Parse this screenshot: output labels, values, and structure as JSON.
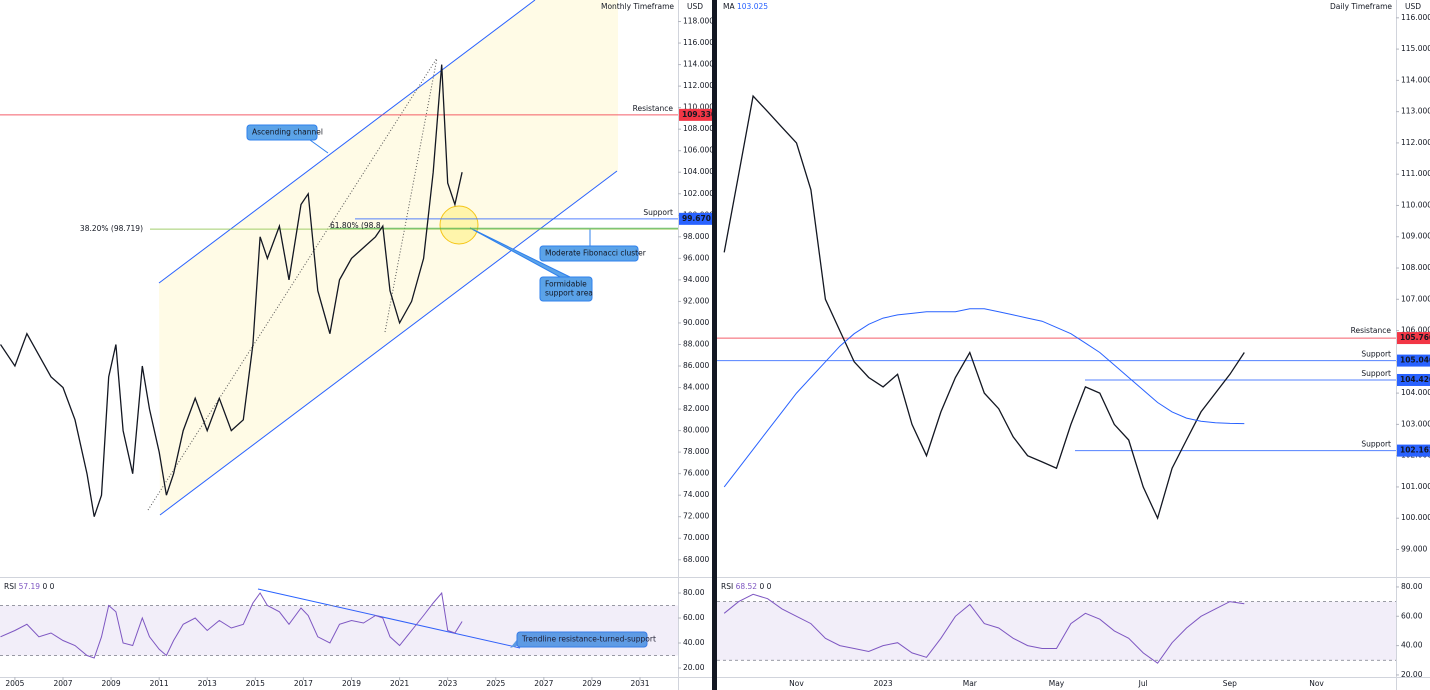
{
  "chart_data": [
    {
      "type": "line",
      "title": "Monthly Timeframe",
      "currency": "USD",
      "x": [
        2004.4,
        2005,
        2005.5,
        2006,
        2006.5,
        2007,
        2007.5,
        2008,
        2008.3,
        2008.6,
        2008.9,
        2009.2,
        2009.5,
        2009.9,
        2010.3,
        2010.6,
        2011.0,
        2011.3,
        2011.6,
        2012.0,
        2012.5,
        2013.0,
        2013.5,
        2014.0,
        2014.5,
        2014.9,
        2015.2,
        2015.5,
        2016.0,
        2016.4,
        2016.9,
        2017.2,
        2017.6,
        2018.1,
        2018.5,
        2019.0,
        2019.5,
        2020.0,
        2020.3,
        2020.6,
        2021.0,
        2021.5,
        2022.0,
        2022.4,
        2022.75,
        2023.0,
        2023.3,
        2023.6
      ],
      "xlim": [
        2004.38,
        2032.58
      ],
      "xticks": [
        2005,
        2007,
        2009,
        2011,
        2013,
        2015,
        2017,
        2019,
        2021,
        2023,
        2025,
        2027,
        2029,
        2031
      ],
      "ylim": [
        66.4,
        120
      ],
      "yticks": [
        {
          "value": 68,
          "label": "68.000"
        },
        {
          "value": 70,
          "label": "70.000"
        },
        {
          "value": 72,
          "label": "72.000"
        },
        {
          "value": 74,
          "label": "74.000"
        },
        {
          "value": 76,
          "label": "76.000"
        },
        {
          "value": 78,
          "label": "78.000"
        },
        {
          "value": 80,
          "label": "80.000"
        },
        {
          "value": 82,
          "label": "82.000"
        },
        {
          "value": 84,
          "label": "84.000"
        },
        {
          "value": 86,
          "label": "86.000"
        },
        {
          "value": 88,
          "label": "88.000"
        },
        {
          "value": 90,
          "label": "90.000"
        },
        {
          "value": 92,
          "label": "92.000"
        },
        {
          "value": 94,
          "label": "94.000"
        },
        {
          "value": 96,
          "label": "96.000"
        },
        {
          "value": 98,
          "label": "98.000"
        },
        {
          "value": 100,
          "label": "100.000"
        },
        {
          "value": 102,
          "label": "102.000"
        },
        {
          "value": 104,
          "label": "104.000"
        },
        {
          "value": 106,
          "label": "106.000"
        },
        {
          "value": 108,
          "label": "108.000"
        },
        {
          "value": 110,
          "label": "110.000"
        },
        {
          "value": 112,
          "label": "112.000"
        },
        {
          "value": 114,
          "label": "114.000"
        },
        {
          "value": 116,
          "label": "116.000"
        },
        {
          "value": 118,
          "label": "118.000"
        }
      ],
      "series": [
        {
          "color": "#131722",
          "values": [
            88,
            86,
            89,
            87,
            85,
            84,
            81,
            76,
            72,
            74,
            85,
            88,
            80,
            76,
            86,
            82,
            78,
            74,
            76,
            80,
            83,
            80,
            83,
            80,
            81,
            88,
            98,
            96,
            99,
            94,
            101,
            102,
            93,
            89,
            94,
            96,
            97,
            98,
            99,
            93,
            90,
            92,
            96,
            104,
            114,
            103,
            101,
            104
          ]
        }
      ],
      "levels": [
        {
          "label": "Resistance",
          "value": 109.33,
          "value_label": "109.330",
          "color": "#f23645"
        },
        {
          "label": "Support",
          "value": 99.67,
          "value_label": "99.670",
          "color": "#2962ff"
        },
        {
          "label": "38.20% (98.719)",
          "value": 98.719,
          "color": "#8bc34a"
        },
        {
          "label": "61.80% (98.8",
          "value": 98.8,
          "color": "#4caf50"
        }
      ],
      "annotations": [
        [
          "Ascending channel"
        ],
        [
          "Moderate Fibonacci cluster"
        ],
        [
          "Formidable",
          "support area"
        ],
        [
          "Trendline resistance-turned-support"
        ]
      ],
      "rsi": {
        "name": "RSI",
        "params": "0 0",
        "color": "#7e57c2",
        "ylim": [
          12.8,
          92
        ],
        "yticks": [
          {
            "value": 20,
            "label": "20.00"
          },
          {
            "value": 40,
            "label": "40.00"
          },
          {
            "value": 60,
            "label": "60.00"
          },
          {
            "value": 80,
            "label": "80.00"
          }
        ],
        "bands": [
          70,
          30
        ],
        "values": [
          45,
          50,
          55,
          45,
          48,
          42,
          38,
          30,
          28,
          45,
          70,
          65,
          40,
          38,
          60,
          45,
          35,
          30,
          42,
          55,
          60,
          50,
          58,
          52,
          55,
          72,
          80,
          70,
          65,
          55,
          68,
          62,
          45,
          40,
          55,
          58,
          56,
          62,
          60,
          45,
          38,
          50,
          62,
          72,
          80,
          50,
          48,
          57.19
        ]
      }
    },
    {
      "type": "line",
      "title": "Daily Timeframe",
      "currency": "USD",
      "categories": [
        null,
        null,
        null,
        null,
        null,
        "Nov",
        null,
        null,
        null,
        null,
        null,
        "2023",
        null,
        null,
        null,
        null,
        null,
        "Mar",
        null,
        null,
        null,
        null,
        null,
        "May",
        null,
        null,
        null,
        null,
        null,
        "Jul",
        null,
        null,
        null,
        null,
        null,
        "Sep",
        null,
        null,
        null,
        null,
        null,
        "Nov",
        null,
        null,
        null,
        null,
        null
      ],
      "ylim": [
        98.12,
        116.57
      ],
      "yticks": [
        {
          "value": 99,
          "label": "99.000"
        },
        {
          "value": 100,
          "label": "100.000"
        },
        {
          "value": 101,
          "label": "101.000"
        },
        {
          "value": 102,
          "label": "102.000"
        },
        {
          "value": 103,
          "label": "103.000"
        },
        {
          "value": 104,
          "label": "104.000"
        },
        {
          "value": 105,
          "label": "105.000"
        },
        {
          "value": 106,
          "label": "106.000"
        },
        {
          "value": 107,
          "label": "107.000"
        },
        {
          "value": 108,
          "label": "108.000"
        },
        {
          "value": 109,
          "label": "109.000"
        },
        {
          "value": 110,
          "label": "110.000"
        },
        {
          "value": 111,
          "label": "111.000"
        },
        {
          "value": 112,
          "label": "112.000"
        },
        {
          "value": 113,
          "label": "113.000"
        },
        {
          "value": 114,
          "label": "114.000"
        },
        {
          "value": 115,
          "label": "115.000"
        },
        {
          "value": 116,
          "label": "116.000"
        }
      ],
      "series": [
        {
          "color": "#131722",
          "values": [
            108.5,
            111,
            113.5,
            113,
            112.5,
            112,
            110.5,
            107,
            106,
            105,
            104.5,
            104.2,
            104.6,
            103,
            102,
            103.4,
            104.5,
            105.3,
            104,
            103.5,
            102.6,
            102,
            101.8,
            101.6,
            103,
            104.2,
            104,
            103,
            102.5,
            101,
            100,
            101.6,
            102.5,
            103.4,
            104,
            104.6,
            105.3,
            null,
            null,
            null,
            null,
            null,
            null,
            null,
            null,
            null,
            null
          ]
        },
        {
          "name": "MA",
          "color": "#2962ff",
          "values": [
            101.0,
            101.6,
            102.2,
            102.8,
            103.4,
            104.0,
            104.5,
            105.0,
            105.5,
            105.9,
            106.2,
            106.4,
            106.5,
            106.55,
            106.6,
            106.6,
            106.6,
            106.7,
            106.7,
            106.6,
            106.5,
            106.4,
            106.3,
            106.1,
            105.9,
            105.6,
            105.3,
            104.9,
            104.5,
            104.1,
            103.7,
            103.4,
            103.2,
            103.1,
            103.05,
            103.03,
            103.025,
            null,
            null,
            null,
            null,
            null,
            null,
            null,
            null,
            null,
            null
          ]
        }
      ],
      "levels": [
        {
          "label": "Resistance",
          "value": 105.76,
          "value_label": "105.760",
          "color": "#f23645"
        },
        {
          "label": "Support",
          "value": 105.04,
          "value_label": "105.040",
          "color": "#2962ff"
        },
        {
          "label": "Support",
          "value": 104.42,
          "value_label": "104.420",
          "color": "#2962ff"
        },
        {
          "label": "Support",
          "value": 102.162,
          "value_label": "102.162",
          "color": "#2962ff"
        }
      ],
      "rsi": {
        "name": "RSI",
        "params": "0 0",
        "color": "#7e57c2",
        "ylim": [
          18.6,
          86.1
        ],
        "yticks": [
          {
            "value": 20,
            "label": "20.00"
          },
          {
            "value": 40,
            "label": "40.00"
          },
          {
            "value": 60,
            "label": "60.00"
          },
          {
            "value": 80,
            "label": "80.00"
          }
        ],
        "bands": [
          70,
          30
        ],
        "values": [
          62,
          70,
          75,
          72,
          65,
          60,
          55,
          45,
          40,
          38,
          36,
          40,
          42,
          35,
          32,
          45,
          60,
          68,
          55,
          52,
          45,
          40,
          38,
          38,
          55,
          62,
          58,
          50,
          45,
          35,
          28,
          42,
          52,
          60,
          65,
          70,
          68.52,
          null,
          null,
          null,
          null,
          null,
          null,
          null,
          null,
          null,
          null
        ]
      }
    }
  ]
}
